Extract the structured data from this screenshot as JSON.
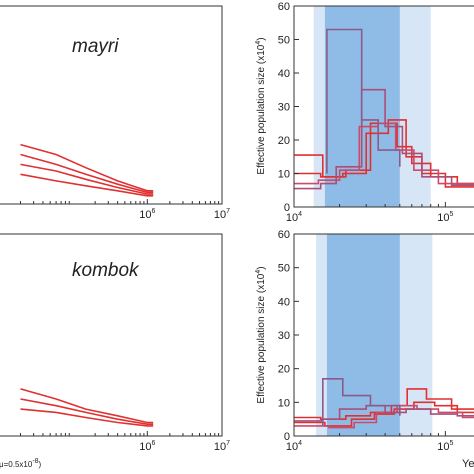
{
  "chart_data": [
    {
      "type": "line",
      "panel": "left-top",
      "annotation": "mayri",
      "xscale": "log",
      "xlim": [
        10000,
        10000000
      ],
      "x_ticks": [
        {
          "base": "10",
          "exp": "6",
          "value": 1000000
        },
        {
          "base": "10",
          "exp": "7",
          "value": 10000000
        }
      ],
      "series": [
        {
          "x": [
            20000,
            60000,
            150000,
            400000,
            1000000,
            1200000
          ],
          "y": [
            18,
            15,
            11,
            7,
            4,
            4
          ]
        },
        {
          "x": [
            20000,
            60000,
            150000,
            400000,
            1000000,
            1200000
          ],
          "y": [
            15,
            12,
            9,
            6,
            3.5,
            3.5
          ]
        },
        {
          "x": [
            20000,
            60000,
            150000,
            400000,
            1000000,
            1200000
          ],
          "y": [
            12,
            10,
            7.5,
            5,
            3,
            3
          ]
        },
        {
          "x": [
            20000,
            60000,
            150000,
            400000,
            1000000,
            1200000
          ],
          "y": [
            9,
            7,
            5.5,
            4,
            2.5,
            2.5
          ]
        }
      ]
    },
    {
      "type": "line",
      "panel": "left-bottom",
      "annotation": "kombok",
      "xscale": "log",
      "xlim": [
        10000,
        10000000
      ],
      "xlabel_fragment": "μ=0.5x10",
      "xlabel_exp": "-8",
      "x_ticks": [
        {
          "base": "10",
          "exp": "6",
          "value": 1000000
        },
        {
          "base": "10",
          "exp": "7",
          "value": 10000000
        }
      ],
      "series": [
        {
          "x": [
            20000,
            60000,
            150000,
            400000,
            1000000,
            1200000
          ],
          "y": [
            14,
            11,
            8,
            6,
            4,
            4
          ]
        },
        {
          "x": [
            20000,
            60000,
            150000,
            400000,
            1000000,
            1200000
          ],
          "y": [
            11,
            9,
            7,
            5,
            3.5,
            3.5
          ]
        },
        {
          "x": [
            20000,
            60000,
            150000,
            400000,
            1000000,
            1200000
          ],
          "y": [
            8,
            7,
            5.5,
            4,
            3,
            3
          ]
        }
      ]
    },
    {
      "type": "line",
      "panel": "right-top",
      "xscale": "log",
      "xlim": [
        10000,
        180000
      ],
      "ylim": [
        0,
        60
      ],
      "ylabel": "Effective population size (x10",
      "ylabel_exp": "4",
      "ylabel_end": ")",
      "y_ticks": [
        "0",
        "10",
        "20",
        "30",
        "40",
        "50",
        "60"
      ],
      "x_ticks": [
        {
          "base": "10",
          "exp": "4",
          "value": 10000
        },
        {
          "base": "10",
          "exp": "5",
          "value": 100000
        }
      ],
      "bands": [
        {
          "from": 13500,
          "to": 80000,
          "color": "#d6e6f6"
        },
        {
          "from": 16000,
          "to": 50000,
          "color": "#8fbce6"
        }
      ],
      "series": [
        {
          "color": "#e03030",
          "x": [
            10000,
            15500,
            15500,
            22000,
            22000,
            32000,
            32000,
            48000,
            48000,
            60000,
            60000,
            80000,
            80000,
            120000,
            120000,
            180000
          ],
          "y": [
            15.5,
            15.5,
            9,
            9,
            11,
            11,
            25,
            25,
            18,
            18,
            13,
            13,
            9,
            9,
            7,
            7
          ]
        },
        {
          "color": "#e03030",
          "x": [
            10000,
            15000,
            15000,
            21000,
            21000,
            30000,
            30000,
            42000,
            42000,
            55000,
            55000,
            70000,
            70000,
            100000,
            100000,
            180000
          ],
          "y": [
            10,
            10,
            9,
            9,
            10,
            10,
            22,
            22,
            26,
            26,
            15,
            15,
            10,
            10,
            6,
            6
          ]
        },
        {
          "color": "#cc4a6a",
          "x": [
            10000,
            14500,
            14500,
            20000,
            20000,
            27000,
            27000,
            36000,
            36000,
            47000,
            47000,
            62000,
            62000,
            90000,
            90000,
            180000
          ],
          "y": [
            7,
            7,
            8,
            8,
            11,
            11,
            24,
            24,
            25,
            25,
            17,
            17,
            11,
            11,
            7,
            7
          ]
        },
        {
          "color": "#a8507a",
          "x": [
            10000,
            15000,
            15000,
            19000,
            19000,
            28000,
            28000,
            40000,
            40000,
            52000,
            52000,
            70000,
            70000,
            110000,
            110000,
            180000
          ],
          "y": [
            5.5,
            5.5,
            7,
            7,
            12,
            12,
            35,
            35,
            24,
            24,
            16,
            16,
            9,
            9,
            6.5,
            6.5
          ]
        },
        {
          "color": "#8c5a8a",
          "x": [
            16500,
            16500,
            28000,
            28000,
            36000,
            36000,
            50000,
            50000
          ],
          "y": [
            10,
            53,
            53,
            26,
            26,
            17,
            17,
            12
          ]
        }
      ]
    },
    {
      "type": "line",
      "panel": "right-bottom",
      "xscale": "log",
      "xlim": [
        10000,
        180000
      ],
      "ylim": [
        0,
        60
      ],
      "xlabel_fragment": "Yea",
      "ylabel": "Effective population size (x10",
      "ylabel_exp": "4",
      "ylabel_end": ")",
      "y_ticks": [
        "0",
        "10",
        "20",
        "30",
        "40",
        "50",
        "60"
      ],
      "x_ticks": [
        {
          "base": "10",
          "exp": "4",
          "value": 10000
        },
        {
          "base": "10",
          "exp": "5",
          "value": 100000
        }
      ],
      "bands": [
        {
          "from": 14000,
          "to": 82000,
          "color": "#d6e6f6"
        },
        {
          "from": 16500,
          "to": 50000,
          "color": "#8fbce6"
        }
      ],
      "series": [
        {
          "color": "#e03030",
          "x": [
            10000,
            15000,
            15000,
            22000,
            22000,
            32000,
            32000,
            44000,
            44000,
            56000,
            56000,
            75000,
            75000,
            110000,
            110000,
            180000
          ],
          "y": [
            5.5,
            5.5,
            5,
            5,
            6,
            6,
            7,
            7,
            9,
            9,
            14,
            14,
            11,
            11,
            8,
            8
          ]
        },
        {
          "color": "#e03030",
          "x": [
            10000,
            16000,
            16000,
            24000,
            24000,
            34000,
            34000,
            46000,
            46000,
            62000,
            62000,
            85000,
            85000,
            120000,
            120000,
            180000
          ],
          "y": [
            4,
            4,
            3,
            3,
            5,
            5,
            6.5,
            6.5,
            8,
            8,
            10,
            10,
            9,
            9,
            7,
            7
          ]
        },
        {
          "color": "#cc4a6a",
          "x": [
            10000,
            17000,
            17000,
            25000,
            25000,
            35000,
            35000,
            48000,
            48000,
            65000,
            65000,
            90000,
            90000,
            130000,
            130000,
            180000
          ],
          "y": [
            3,
            3,
            2.5,
            2.5,
            4,
            4,
            7,
            7,
            9,
            9,
            8,
            8,
            7,
            7,
            5.5,
            5.5
          ]
        },
        {
          "color": "#a8507a",
          "x": [
            10000,
            15500,
            15500,
            20000,
            20000,
            30000,
            30000,
            40000,
            40000,
            55000,
            55000,
            80000,
            80000,
            120000,
            120000,
            180000
          ],
          "y": [
            4.5,
            4.5,
            5,
            5,
            8,
            8,
            9,
            9,
            7,
            7,
            8,
            8,
            6.5,
            6.5,
            6,
            6
          ]
        },
        {
          "color": "#8c5a8a",
          "x": [
            15500,
            15500,
            21000,
            21000,
            32000,
            32000,
            50000,
            50000
          ],
          "y": [
            3,
            17,
            17,
            12,
            12,
            9,
            9,
            6
          ]
        }
      ]
    }
  ]
}
